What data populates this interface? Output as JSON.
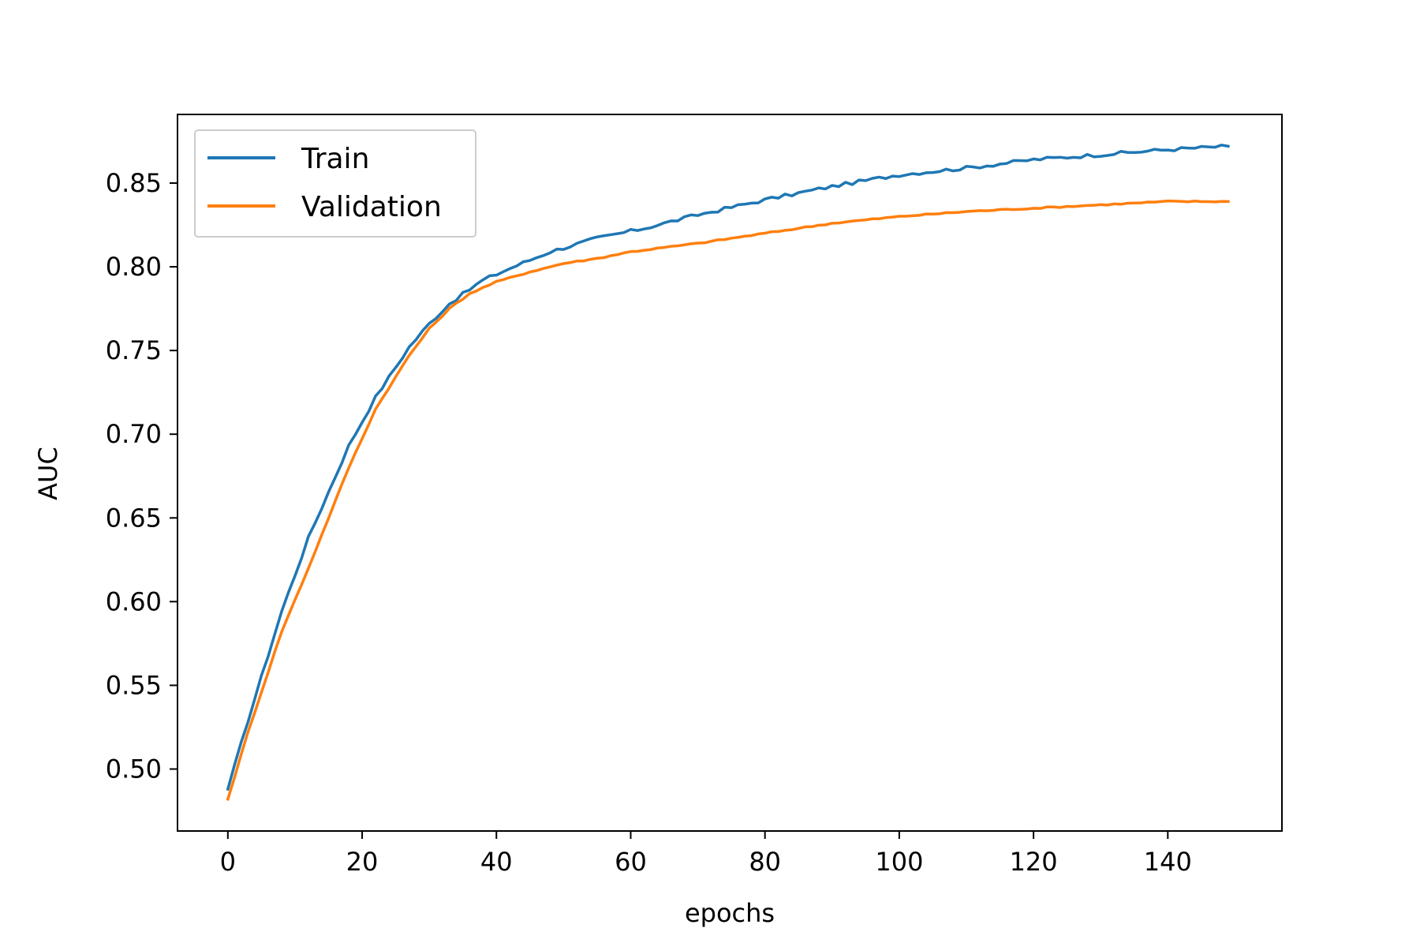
{
  "chart_data": {
    "type": "line",
    "title": "",
    "xlabel": "epochs",
    "ylabel": "AUC",
    "xlim": [
      -7.5,
      157
    ],
    "ylim": [
      0.463,
      0.891
    ],
    "xticks": [
      0,
      20,
      40,
      60,
      80,
      100,
      120,
      140
    ],
    "xtick_labels": [
      "0",
      "20",
      "40",
      "60",
      "80",
      "100",
      "120",
      "140"
    ],
    "yticks": [
      0.5,
      0.55,
      0.6,
      0.65,
      0.7,
      0.75,
      0.8,
      0.85
    ],
    "ytick_labels": [
      "0.50",
      "0.55",
      "0.60",
      "0.65",
      "0.70",
      "0.75",
      "0.80",
      "0.85"
    ],
    "grid": false,
    "legend_position": "top-left",
    "x_range": [
      0,
      149
    ],
    "series": [
      {
        "name": "Train",
        "color": "#1f77b4",
        "key_points": [
          [
            0,
            0.488
          ],
          [
            3,
            0.529
          ],
          [
            8,
            0.594
          ],
          [
            12,
            0.638
          ],
          [
            18,
            0.693
          ],
          [
            22,
            0.722
          ],
          [
            27,
            0.752
          ],
          [
            30,
            0.766
          ],
          [
            33,
            0.778
          ],
          [
            38,
            0.792
          ],
          [
            42,
            0.799
          ],
          [
            48,
            0.809
          ],
          [
            55,
            0.817
          ],
          [
            62,
            0.823
          ],
          [
            70,
            0.831
          ],
          [
            80,
            0.84
          ],
          [
            90,
            0.848
          ],
          [
            100,
            0.855
          ],
          [
            110,
            0.859
          ],
          [
            120,
            0.864
          ],
          [
            130,
            0.867
          ],
          [
            140,
            0.87
          ],
          [
            149,
            0.872
          ]
        ]
      },
      {
        "name": "Validation",
        "color": "#ff7f0e",
        "key_points": [
          [
            0,
            0.482
          ],
          [
            3,
            0.522
          ],
          [
            8,
            0.582
          ],
          [
            12,
            0.62
          ],
          [
            18,
            0.68
          ],
          [
            22,
            0.715
          ],
          [
            27,
            0.747
          ],
          [
            30,
            0.763
          ],
          [
            33,
            0.775
          ],
          [
            36,
            0.784
          ],
          [
            40,
            0.791
          ],
          [
            45,
            0.797
          ],
          [
            50,
            0.802
          ],
          [
            55,
            0.805
          ],
          [
            60,
            0.809
          ],
          [
            70,
            0.814
          ],
          [
            80,
            0.82
          ],
          [
            90,
            0.826
          ],
          [
            100,
            0.83
          ],
          [
            110,
            0.833
          ],
          [
            120,
            0.835
          ],
          [
            130,
            0.837
          ],
          [
            140,
            0.839
          ],
          [
            149,
            0.839
          ]
        ]
      }
    ]
  }
}
